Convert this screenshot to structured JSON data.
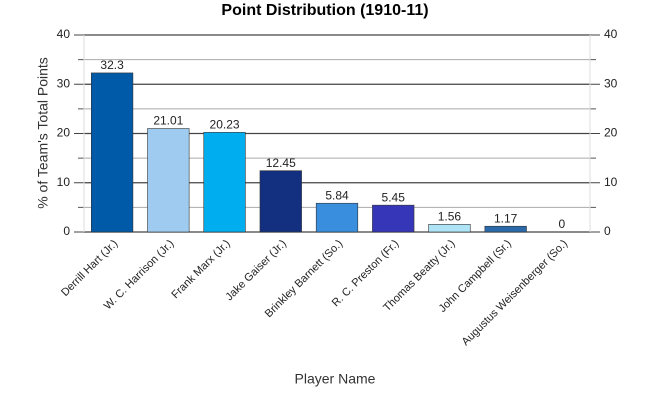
{
  "chart_data": {
    "type": "bar",
    "title": "Point Distribution (1910-11)",
    "x_label": "Player Name",
    "y_label": "% of Team's Total Points",
    "categories": [
      "Derrill Hart (Jr.)",
      "W. C. Harrison (Jr.)",
      "Frank Marx (Jr.)",
      "Jake Gaiser (Jr.)",
      "Brinkley Barnett (So.)",
      "R. C. Preston (Fr.)",
      "Thomas Beatty (Jr.)",
      "John Campbell (Sr.)",
      "Augustus Weisenberger (So.)"
    ],
    "values": [
      32.3,
      21.01,
      20.23,
      12.45,
      5.84,
      5.45,
      1.56,
      1.17,
      0
    ],
    "colors": [
      "#005aa8",
      "#9ecbef",
      "#00adee",
      "#12307f",
      "#3a8ede",
      "#3636b9",
      "#aee4f6",
      "#2b6aaa",
      "#1a5ab3"
    ],
    "ylim": [
      0,
      40
    ],
    "yticks": [
      0,
      10,
      20,
      30,
      40
    ],
    "minor_yticks": [
      5,
      15,
      25,
      35
    ],
    "y2lim": [
      0,
      40
    ],
    "y2ticks": [
      0,
      10,
      20,
      30,
      40
    ],
    "grid": true
  }
}
